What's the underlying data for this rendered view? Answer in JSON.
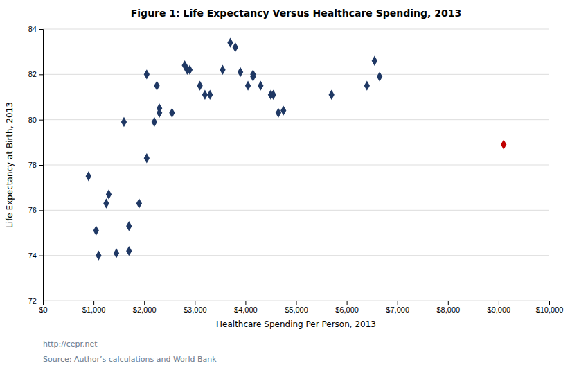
{
  "chart_data": {
    "type": "scatter",
    "title": "Figure 1:  Life Expectancy Versus Healthcare Spending, 2013",
    "x_label": "Healthcare Spending Per Person, 2013",
    "y_label": "Life Expectancy at Birth, 2013",
    "annotations": [
      "http://cepr.net",
      "Source: Author’s calculations and World Bank"
    ],
    "marker": "diamond",
    "grid": "y",
    "xlim": [
      0,
      10000
    ],
    "ylim": [
      72,
      84
    ],
    "xticks": [
      {
        "value": 0,
        "label": "$0"
      },
      {
        "value": 1000,
        "label": "$1,000"
      },
      {
        "value": 2000,
        "label": "$2,000"
      },
      {
        "value": 3000,
        "label": "$3,000"
      },
      {
        "value": 4000,
        "label": "$4,000"
      },
      {
        "value": 5000,
        "label": "$5,000"
      },
      {
        "value": 6000,
        "label": "$6,000"
      },
      {
        "value": 7000,
        "label": "$7,000"
      },
      {
        "value": 8000,
        "label": "$8,000"
      },
      {
        "value": 9000,
        "label": "$9,000"
      },
      {
        "value": 10000,
        "label": "$10,000"
      }
    ],
    "yticks": [
      72,
      74,
      76,
      78,
      80,
      82,
      84
    ],
    "series": [
      {
        "color": "#1F3864",
        "x": [
          900,
          1050,
          1100,
          1250,
          1300,
          1450,
          1600,
          1700,
          1700,
          1900,
          2050,
          2050,
          2200,
          2250,
          2300,
          2300,
          2550,
          2800,
          2850,
          2900,
          3100,
          3200,
          3300,
          3550,
          3700,
          3800,
          3900,
          4050,
          4150,
          4150,
          4300,
          4500,
          4550,
          4650,
          4750,
          5700,
          6400,
          6550,
          6650
        ],
        "values": [
          77.5,
          75.1,
          74.0,
          76.3,
          76.7,
          74.1,
          79.9,
          74.2,
          75.3,
          76.3,
          82.0,
          78.3,
          79.9,
          81.5,
          80.5,
          80.3,
          80.3,
          82.4,
          82.2,
          82.2,
          81.5,
          81.1,
          81.1,
          82.2,
          83.4,
          83.2,
          82.1,
          81.5,
          82.0,
          81.9,
          81.5,
          81.1,
          81.1,
          80.3,
          80.4,
          81.1,
          81.5,
          82.6,
          81.9
        ]
      },
      {
        "color": "#C00000",
        "x": [
          9100
        ],
        "values": [
          78.9
        ]
      }
    ]
  }
}
